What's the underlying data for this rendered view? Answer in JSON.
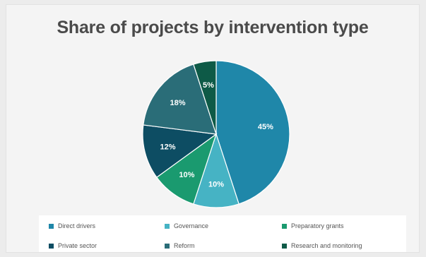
{
  "chart_data": {
    "type": "pie",
    "title": "Share of projects by intervention type",
    "categories": [
      "Direct drivers",
      "Governance",
      "Preparatory grants",
      "Private sector",
      "Reform",
      "Research and monitoring"
    ],
    "values": [
      45,
      10,
      10,
      12,
      18,
      5
    ],
    "data_labels": [
      "45%",
      "10%",
      "10%",
      "12%",
      "18%",
      "5%"
    ],
    "colors": [
      "#1f87a9",
      "#46b3c4",
      "#1a9a6f",
      "#0d4d63",
      "#2a6d78",
      "#0e5a47"
    ],
    "legend_position": "bottom"
  }
}
